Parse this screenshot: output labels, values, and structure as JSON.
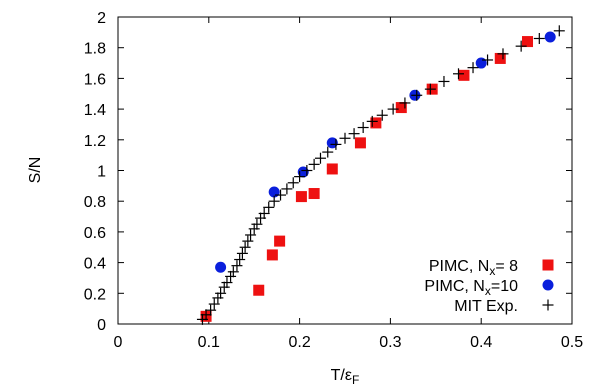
{
  "chart_data": {
    "type": "scatter",
    "xlabel": "T/εF",
    "xlabel_main": "T/ε",
    "xlabel_sub": "F",
    "ylabel": "S/N",
    "xlim": [
      0,
      0.5
    ],
    "ylim": [
      0,
      2
    ],
    "xticks": [
      0,
      0.1,
      0.2,
      0.3,
      0.4,
      0.5
    ],
    "xtick_labels": [
      "0",
      "0.1",
      "0.2",
      "0.3",
      "0.4",
      "0.5"
    ],
    "yticks": [
      0,
      0.2,
      0.4,
      0.6,
      0.8,
      1,
      1.2,
      1.4,
      1.6,
      1.8,
      2
    ],
    "ytick_labels": [
      "0",
      "0.2",
      "0.4",
      "0.6",
      "0.8",
      "1",
      "1.2",
      "1.4",
      "1.6",
      "1.8",
      "2"
    ],
    "grid": false,
    "legend_position": "bottom-right",
    "series": [
      {
        "name": "PIMC, Nx= 8",
        "legend_main": "PIMC, N",
        "legend_sub": "x",
        "legend_tail": "= 8",
        "marker": "square",
        "color": "#ee1111",
        "points": [
          [
            0.097,
            0.05
          ],
          [
            0.155,
            0.22
          ],
          [
            0.17,
            0.45
          ],
          [
            0.178,
            0.54
          ],
          [
            0.202,
            0.83
          ],
          [
            0.216,
            0.85
          ],
          [
            0.236,
            1.01
          ],
          [
            0.267,
            1.18
          ],
          [
            0.284,
            1.31
          ],
          [
            0.312,
            1.41
          ],
          [
            0.346,
            1.53
          ],
          [
            0.381,
            1.62
          ],
          [
            0.421,
            1.73
          ],
          [
            0.451,
            1.84
          ]
        ]
      },
      {
        "name": "PIMC, Nx=10",
        "legend_main": "PIMC, N",
        "legend_sub": "x",
        "legend_tail": "=10",
        "marker": "circle",
        "color": "#0a1fdc",
        "points": [
          [
            0.113,
            0.37
          ],
          [
            0.172,
            0.86
          ],
          [
            0.204,
            0.99
          ],
          [
            0.236,
            1.18
          ],
          [
            0.327,
            1.49
          ],
          [
            0.4,
            1.7
          ],
          [
            0.476,
            1.87
          ]
        ]
      },
      {
        "name": "MIT Exp.",
        "legend_main": "MIT Exp.",
        "legend_sub": "",
        "legend_tail": "",
        "marker": "plus",
        "color": "#000000",
        "points": [
          [
            0.093,
            0.03
          ],
          [
            0.097,
            0.06
          ],
          [
            0.102,
            0.09
          ],
          [
            0.106,
            0.13
          ],
          [
            0.11,
            0.17
          ],
          [
            0.113,
            0.2
          ],
          [
            0.117,
            0.24
          ],
          [
            0.12,
            0.27
          ],
          [
            0.124,
            0.31
          ],
          [
            0.127,
            0.34
          ],
          [
            0.131,
            0.38
          ],
          [
            0.134,
            0.42
          ],
          [
            0.137,
            0.46
          ],
          [
            0.14,
            0.5
          ],
          [
            0.143,
            0.54
          ],
          [
            0.146,
            0.58
          ],
          [
            0.15,
            0.62
          ],
          [
            0.153,
            0.65
          ],
          [
            0.157,
            0.69
          ],
          [
            0.161,
            0.72
          ],
          [
            0.166,
            0.76
          ],
          [
            0.172,
            0.8
          ],
          [
            0.179,
            0.84
          ],
          [
            0.186,
            0.88
          ],
          [
            0.193,
            0.92
          ],
          [
            0.2,
            0.96
          ],
          [
            0.208,
            1.0
          ],
          [
            0.216,
            1.04
          ],
          [
            0.223,
            1.08
          ],
          [
            0.231,
            1.12
          ],
          [
            0.24,
            1.17
          ],
          [
            0.25,
            1.21
          ],
          [
            0.26,
            1.24
          ],
          [
            0.27,
            1.28
          ],
          [
            0.28,
            1.32
          ],
          [
            0.291,
            1.36
          ],
          [
            0.303,
            1.4
          ],
          [
            0.316,
            1.44
          ],
          [
            0.329,
            1.49
          ],
          [
            0.344,
            1.53
          ],
          [
            0.359,
            1.58
          ],
          [
            0.375,
            1.63
          ],
          [
            0.391,
            1.67
          ],
          [
            0.407,
            1.72
          ],
          [
            0.424,
            1.76
          ],
          [
            0.444,
            1.81
          ],
          [
            0.464,
            1.86
          ],
          [
            0.486,
            1.91
          ]
        ]
      }
    ]
  }
}
